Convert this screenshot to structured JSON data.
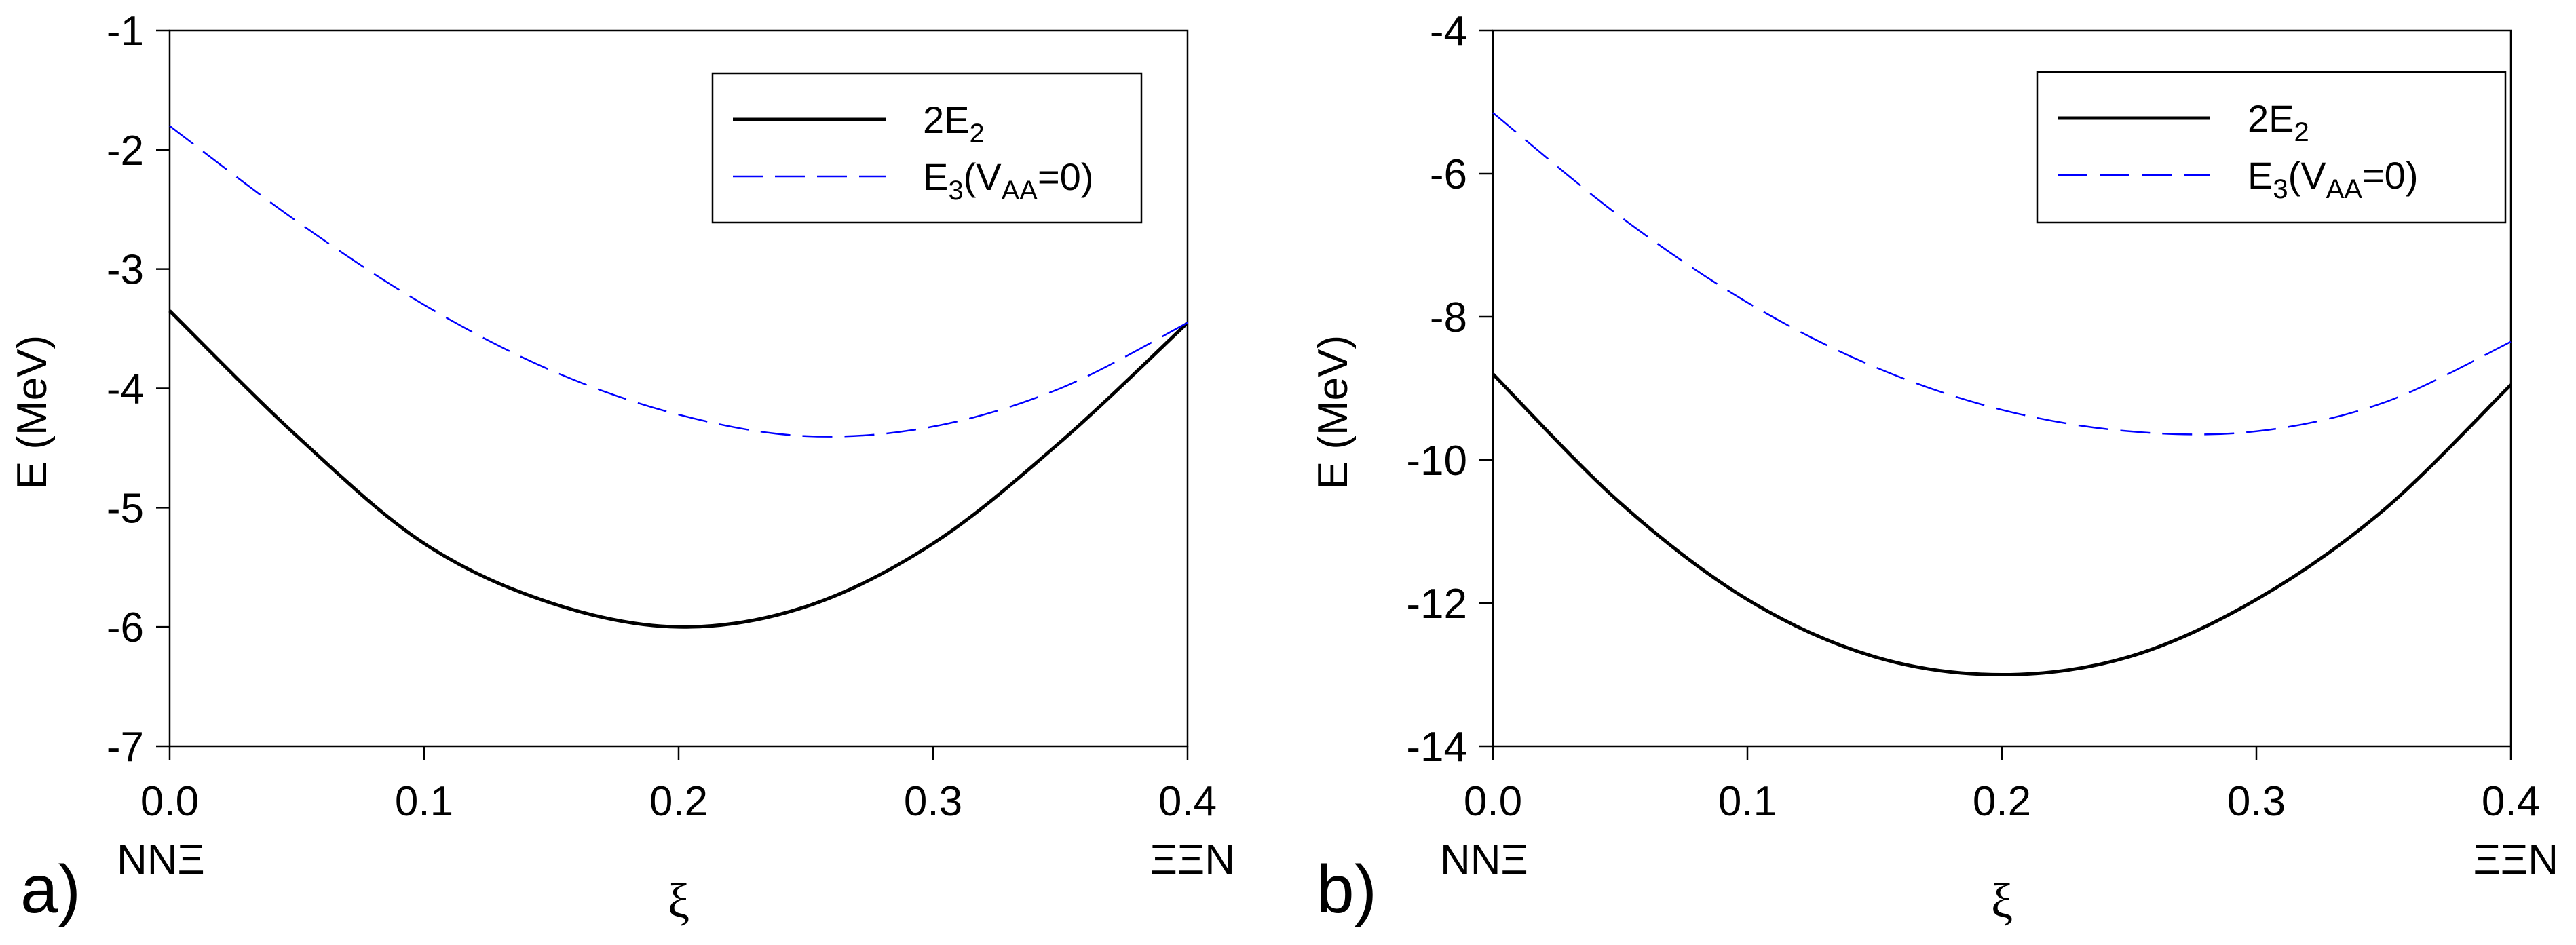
{
  "chart_data": [
    {
      "panel": "a)",
      "type": "line",
      "xlabel": "ξ",
      "ylabel": "E (MeV)",
      "xlim": [
        0.0,
        0.4
      ],
      "ylim": [
        -7,
        -1
      ],
      "xticks": [
        "0.0",
        "0.1",
        "0.2",
        "0.3",
        "0.4"
      ],
      "yticks": [
        "-1",
        "-2",
        "-3",
        "-4",
        "-5",
        "-6",
        "-7"
      ],
      "x_left_label": "NNΞ",
      "x_right_label": "ΞΞN",
      "legend_position": "top-right",
      "series": [
        {
          "name": "2E_2",
          "legend_main": "2E",
          "legend_sub": "2",
          "legend_tail": "",
          "style": "solid",
          "color": "#000000",
          "x": [
            0.0,
            0.05,
            0.1,
            0.15,
            0.2,
            0.25,
            0.3,
            0.35,
            0.4
          ],
          "y": [
            -3.35,
            -4.4,
            -5.3,
            -5.8,
            -6.0,
            -5.83,
            -5.3,
            -4.45,
            -3.45
          ]
        },
        {
          "name": "E_3(V_AA=0)",
          "legend_main": "E",
          "legend_sub": "3",
          "legend_paren": "(V",
          "legend_sub2": "AA",
          "legend_tail": "=0)",
          "style": "dashed",
          "color": "#0000ff",
          "x": [
            0.0,
            0.05,
            0.1,
            0.15,
            0.2,
            0.25,
            0.3,
            0.35,
            0.4
          ],
          "y": [
            -1.8,
            -2.6,
            -3.3,
            -3.85,
            -4.22,
            -4.4,
            -4.32,
            -4.0,
            -3.45
          ]
        }
      ]
    },
    {
      "panel": "b)",
      "type": "line",
      "xlabel": "ξ",
      "ylabel": "E (MeV)",
      "xlim": [
        0.0,
        0.4
      ],
      "ylim": [
        -14,
        -4
      ],
      "xticks": [
        "0.0",
        "0.1",
        "0.2",
        "0.3",
        "0.4"
      ],
      "yticks": [
        "-4",
        "-6",
        "-8",
        "-10",
        "-12",
        "-14"
      ],
      "x_left_label": "NNΞ",
      "x_right_label": "ΞΞN",
      "legend_position": "top-right",
      "series": [
        {
          "name": "2E_2",
          "legend_main": "2E",
          "legend_sub": "2",
          "legend_tail": "",
          "style": "solid",
          "color": "#000000",
          "x": [
            0.0,
            0.05,
            0.1,
            0.15,
            0.2,
            0.25,
            0.3,
            0.35,
            0.4
          ],
          "y": [
            -8.8,
            -10.6,
            -11.95,
            -12.75,
            -13.0,
            -12.75,
            -11.95,
            -10.7,
            -8.95
          ]
        },
        {
          "name": "E_3(V_AA=0)",
          "legend_main": "E",
          "legend_sub": "3",
          "legend_paren": "(V",
          "legend_sub2": "AA",
          "legend_tail": "=0)",
          "style": "dashed",
          "color": "#0000ff",
          "x": [
            0.0,
            0.05,
            0.1,
            0.15,
            0.2,
            0.25,
            0.3,
            0.35,
            0.4
          ],
          "y": [
            -5.15,
            -6.6,
            -7.8,
            -8.7,
            -9.3,
            -9.6,
            -9.6,
            -9.2,
            -8.35
          ]
        }
      ]
    }
  ]
}
